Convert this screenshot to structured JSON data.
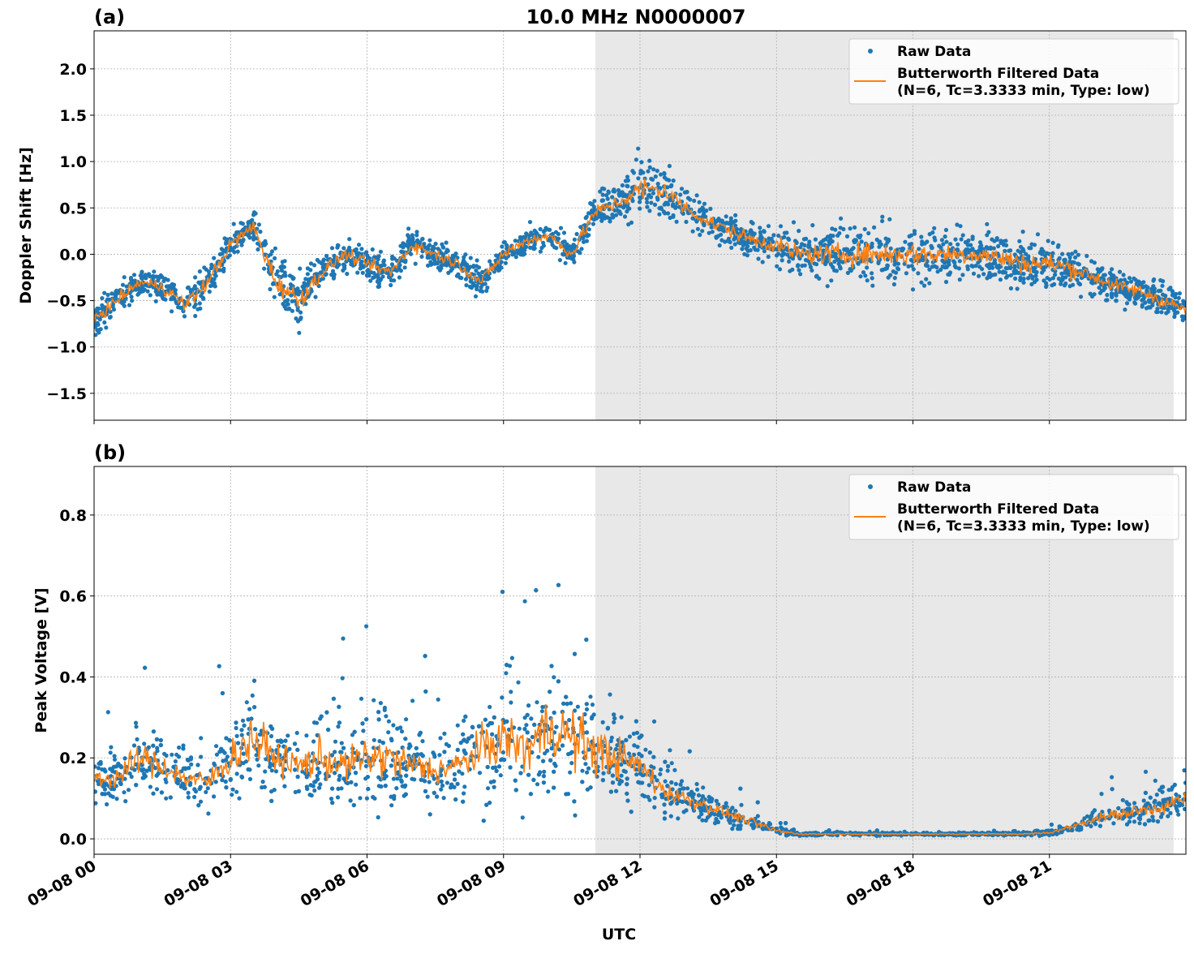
{
  "chart_data": [
    {
      "type": "scatter+line",
      "panel_label": "(a)",
      "title": "10.0 MHz N0000007",
      "xlabel": "",
      "ylabel": "Doppler Shift [Hz]",
      "ylim": [
        -1.79,
        2.41
      ],
      "xlim_hours": [
        0,
        24
      ],
      "yticks": [
        -1.5,
        -1.0,
        -0.5,
        0.0,
        0.5,
        1.0,
        1.5,
        2.0
      ],
      "ytick_labels": [
        "−1.5",
        "−1.0",
        "−0.5",
        "0.0",
        "0.5",
        "1.0",
        "1.5",
        "2.0"
      ],
      "grid": true,
      "legend_position": "top-right",
      "shaded_region_hours": [
        11.02,
        23.73
      ],
      "x_hours": [
        0,
        0.5,
        1,
        1.5,
        2,
        2.5,
        3,
        3.5,
        4,
        4.5,
        5,
        5.5,
        6,
        6.5,
        7,
        7.5,
        8,
        8.5,
        9,
        9.5,
        10,
        10.5,
        11,
        11.5,
        12,
        12.5,
        13,
        13.5,
        14,
        14.5,
        15,
        15.5,
        16,
        16.5,
        17,
        17.5,
        18,
        18.5,
        19,
        19.5,
        20,
        20.5,
        21,
        21.5,
        22,
        22.5,
        23,
        23.5,
        24
      ],
      "series": [
        {
          "name": "Butterworth Filtered Data\n(N=6, Tc=3.3333 min, Type: low)",
          "color": "#ff7f0e",
          "values": [
            -0.7,
            -0.5,
            -0.3,
            -0.35,
            -0.55,
            -0.3,
            0.1,
            0.3,
            -0.3,
            -0.5,
            -0.2,
            0.0,
            -0.1,
            -0.2,
            0.1,
            0.0,
            -0.1,
            -0.3,
            0.0,
            0.15,
            0.2,
            0.0,
            0.45,
            0.55,
            0.7,
            0.7,
            0.5,
            0.35,
            0.25,
            0.15,
            0.1,
            0.0,
            0.0,
            0.0,
            0.0,
            0.0,
            0.0,
            0.0,
            0.0,
            0.0,
            -0.05,
            -0.1,
            -0.1,
            -0.15,
            -0.25,
            -0.35,
            -0.4,
            -0.5,
            -0.6
          ]
        },
        {
          "name": "Raw Data",
          "color": "#1f77b4",
          "spread": [
            0.3,
            0.25,
            0.25,
            0.25,
            0.35,
            0.3,
            0.3,
            0.3,
            0.45,
            0.45,
            0.3,
            0.25,
            0.25,
            0.3,
            0.25,
            0.25,
            0.25,
            0.25,
            0.25,
            0.25,
            0.25,
            0.25,
            0.3,
            0.3,
            0.55,
            0.45,
            0.35,
            0.3,
            0.3,
            0.3,
            0.35,
            0.4,
            0.45,
            0.45,
            0.5,
            0.45,
            0.5,
            0.45,
            0.45,
            0.4,
            0.45,
            0.45,
            0.45,
            0.4,
            0.3,
            0.3,
            0.3,
            0.3,
            0.3
          ]
        }
      ]
    },
    {
      "type": "scatter+line",
      "panel_label": "(b)",
      "title": "",
      "xlabel": "UTC",
      "ylabel": "Peak Voltage [V]",
      "ylim": [
        -0.038,
        0.92
      ],
      "xlim_hours": [
        0,
        24
      ],
      "yticks": [
        0.0,
        0.2,
        0.4,
        0.6,
        0.8
      ],
      "ytick_labels": [
        "0.0",
        "0.2",
        "0.4",
        "0.6",
        "0.8"
      ],
      "xticks_hours": [
        0,
        3,
        6,
        9,
        12,
        15,
        18,
        21
      ],
      "xtick_labels": [
        "09-08 00",
        "09-08 03",
        "09-08 06",
        "09-08 09",
        "09-08 12",
        "09-08 15",
        "09-08 18",
        "09-08 21"
      ],
      "grid": true,
      "legend_position": "top-right",
      "shaded_region_hours": [
        11.02,
        23.73
      ],
      "x_hours": [
        0,
        0.5,
        1,
        1.5,
        2,
        2.5,
        3,
        3.5,
        4,
        4.5,
        5,
        5.5,
        6,
        6.5,
        7,
        7.5,
        8,
        8.5,
        9,
        9.5,
        10,
        10.5,
        11,
        11.5,
        12,
        12.5,
        13,
        13.5,
        14,
        14.5,
        15,
        15.5,
        16,
        16.5,
        17,
        17.5,
        18,
        18.5,
        19,
        19.5,
        20,
        20.5,
        21,
        21.5,
        22,
        22.5,
        23,
        23.5,
        24
      ],
      "series": [
        {
          "name": "Butterworth Filtered Data\n(N=6, Tc=3.3333 min, Type: low)",
          "color": "#ff7f0e",
          "values": [
            0.15,
            0.15,
            0.2,
            0.18,
            0.15,
            0.14,
            0.2,
            0.25,
            0.2,
            0.18,
            0.2,
            0.18,
            0.2,
            0.2,
            0.18,
            0.17,
            0.18,
            0.22,
            0.25,
            0.22,
            0.28,
            0.25,
            0.22,
            0.2,
            0.18,
            0.12,
            0.1,
            0.08,
            0.06,
            0.04,
            0.02,
            0.012,
            0.012,
            0.012,
            0.012,
            0.012,
            0.012,
            0.012,
            0.012,
            0.012,
            0.012,
            0.012,
            0.015,
            0.03,
            0.05,
            0.06,
            0.07,
            0.08,
            0.1
          ]
        },
        {
          "name": "Raw Data",
          "color": "#1f77b4",
          "spread": [
            0.1,
            0.1,
            0.15,
            0.13,
            0.1,
            0.1,
            0.18,
            0.25,
            0.15,
            0.15,
            0.2,
            0.15,
            0.2,
            0.2,
            0.15,
            0.15,
            0.15,
            0.2,
            0.25,
            0.25,
            0.3,
            0.3,
            0.25,
            0.2,
            0.15,
            0.1,
            0.08,
            0.06,
            0.05,
            0.04,
            0.02,
            0.008,
            0.006,
            0.006,
            0.006,
            0.006,
            0.006,
            0.006,
            0.006,
            0.006,
            0.006,
            0.008,
            0.01,
            0.025,
            0.04,
            0.05,
            0.06,
            0.07,
            0.08
          ]
        }
      ]
    }
  ],
  "legend": {
    "raw_label": "Raw Data",
    "filtered_line1": "Butterworth Filtered Data",
    "filtered_line2": "(N=6, Tc=3.3333 min, Type: low)"
  }
}
